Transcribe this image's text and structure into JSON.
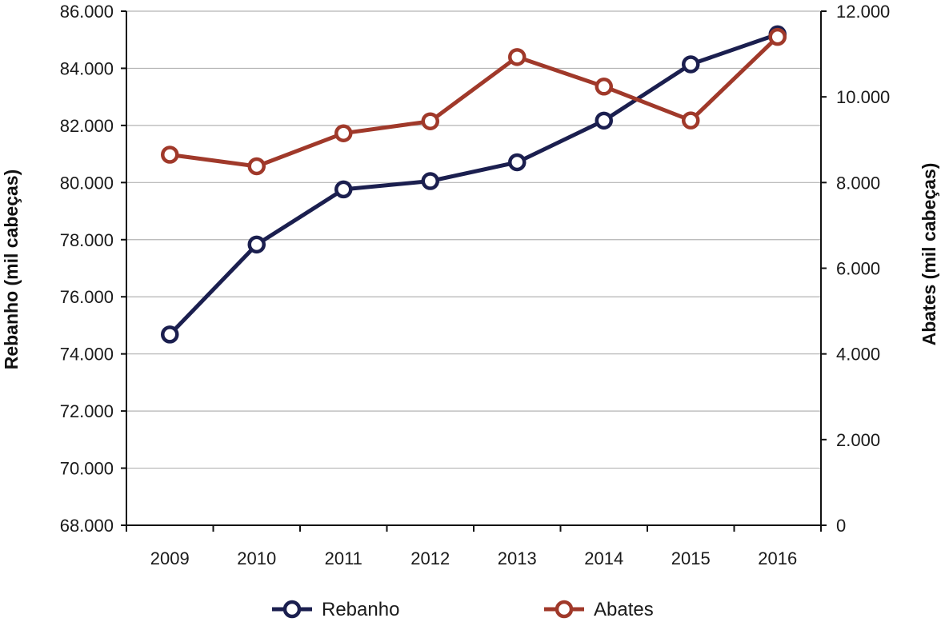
{
  "chart_data": {
    "type": "line",
    "categories": [
      "2009",
      "2010",
      "2011",
      "2012",
      "2013",
      "2014",
      "2015",
      "2016"
    ],
    "y_left": {
      "label": "Rebanho (mil cabeças)",
      "range": [
        68000,
        86000
      ],
      "ticks": [
        "68.000",
        "70.000",
        "72.000",
        "74.000",
        "76.000",
        "78.000",
        "80.000",
        "82.000",
        "84.000",
        "86.000"
      ]
    },
    "y_right": {
      "label": "Abates (mil cabeças)",
      "range": [
        0,
        12000
      ],
      "ticks": [
        "0",
        "2.000",
        "4.000",
        "6.000",
        "8.000",
        "10.000",
        "12.000"
      ]
    },
    "series": [
      {
        "name": "Rebanho",
        "axis": "left",
        "color": "#1b1f4f",
        "values": [
          74680,
          77830,
          79760,
          80050,
          80710,
          82170,
          84140,
          85190
        ]
      },
      {
        "name": "Abates",
        "axis": "right",
        "color": "#a0392a",
        "values": [
          8650,
          8380,
          9150,
          9430,
          10930,
          10240,
          9450,
          11400
        ]
      }
    ],
    "grid": "horizontal",
    "legend": "bottom"
  }
}
